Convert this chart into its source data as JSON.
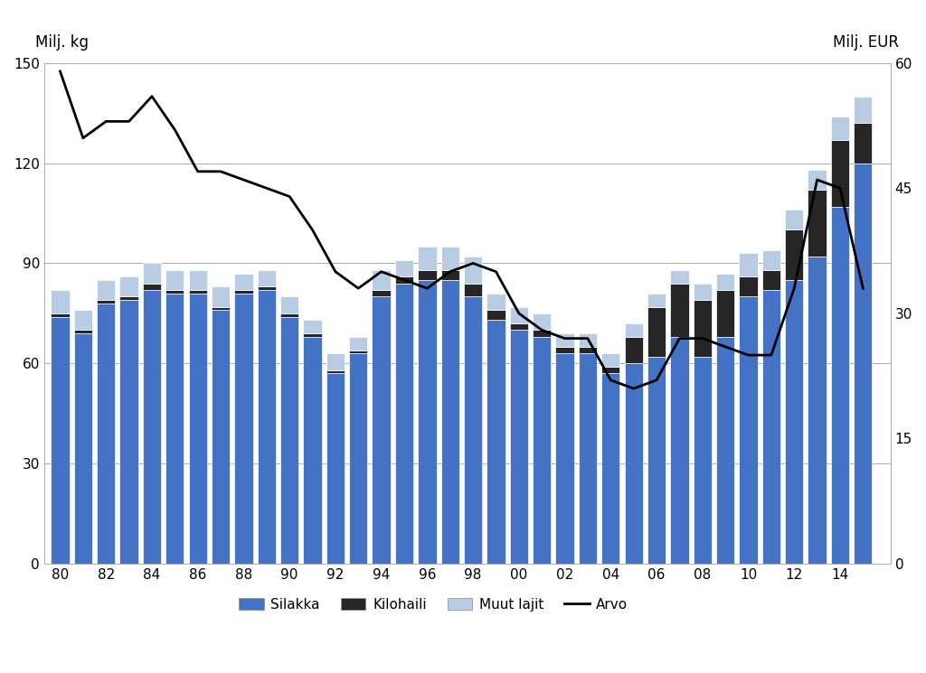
{
  "years": [
    1980,
    1981,
    1982,
    1983,
    1984,
    1985,
    1986,
    1987,
    1988,
    1989,
    1990,
    1991,
    1992,
    1993,
    1994,
    1995,
    1996,
    1997,
    1998,
    1999,
    2000,
    2001,
    2002,
    2003,
    2004,
    2005,
    2006,
    2007,
    2008,
    2009,
    2010,
    2011,
    2012,
    2013,
    2014,
    2015
  ],
  "silakka": [
    74,
    69,
    78,
    79,
    82,
    81,
    81,
    76,
    81,
    82,
    74,
    68,
    57,
    63,
    80,
    84,
    85,
    85,
    80,
    73,
    70,
    68,
    63,
    63,
    57,
    60,
    62,
    68,
    62,
    68,
    80,
    82,
    85,
    92,
    107,
    120
  ],
  "kilohaili": [
    1,
    1,
    1,
    1,
    2,
    1,
    1,
    1,
    1,
    1,
    1,
    1,
    1,
    1,
    2,
    2,
    3,
    3,
    4,
    3,
    2,
    2,
    2,
    2,
    2,
    8,
    15,
    16,
    17,
    14,
    6,
    6,
    15,
    20,
    20,
    12
  ],
  "muut_lajit": [
    7,
    6,
    6,
    6,
    6,
    6,
    6,
    6,
    5,
    5,
    5,
    4,
    5,
    4,
    6,
    5,
    7,
    7,
    8,
    5,
    5,
    5,
    4,
    4,
    4,
    4,
    4,
    4,
    5,
    5,
    7,
    6,
    6,
    6,
    7,
    8
  ],
  "arvo": [
    59,
    51,
    53,
    53,
    56,
    52,
    47,
    47,
    46,
    45,
    44,
    40,
    35,
    33,
    35,
    34,
    33,
    35,
    36,
    35,
    30,
    28,
    27,
    27,
    22,
    21,
    22,
    27,
    27,
    26,
    25,
    25,
    33,
    46,
    45,
    33
  ],
  "silakka_color": "#4472C4",
  "kilohaili_color": "#262626",
  "muut_lajit_color": "#B8CCE4",
  "arvo_color": "#000000",
  "ylabel_left": "Milj. kg",
  "ylabel_right": "Milj. EUR",
  "ylim_left": [
    0,
    150
  ],
  "ylim_right": [
    0,
    60
  ],
  "yticks_left": [
    0,
    30,
    60,
    90,
    120,
    150
  ],
  "yticks_right": [
    0,
    15,
    30,
    45,
    60
  ],
  "legend_labels": [
    "Silakka",
    "Kilohaili",
    "Muut lajit",
    "Arvo"
  ],
  "background_color": "#FFFFFF",
  "bar_edge_color": "#FFFFFF",
  "bar_edge_width": 0.5
}
